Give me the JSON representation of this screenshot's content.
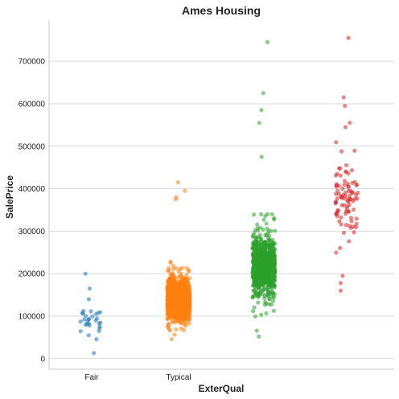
{
  "chart_data": {
    "type": "scatter",
    "subtype": "strip",
    "title": "Ames Housing",
    "xlabel": "ExterQual",
    "ylabel": "SalePrice",
    "ylim": [
      -25000,
      795000
    ],
    "yticks": [
      0,
      100000,
      200000,
      300000,
      400000,
      500000,
      600000,
      700000
    ],
    "grid": "horizontal",
    "categories": [
      "Fair",
      "Typical",
      "",
      ""
    ],
    "series": [
      {
        "category_index": 0,
        "color": "#1f77b4",
        "count": 28,
        "median": 85000,
        "q1": 62000,
        "q3": 110000,
        "min": 13000,
        "max": 200000
      },
      {
        "category_index": 1,
        "color": "#ff7f0e",
        "count": 1800,
        "median": 140000,
        "q1": 115000,
        "q3": 170000,
        "min": 13000,
        "max": 415000
      },
      {
        "category_index": 2,
        "color": "#2ca02c",
        "count": 900,
        "median": 220000,
        "q1": 180000,
        "q3": 270000,
        "min": 52000,
        "max": 745000
      },
      {
        "category_index": 3,
        "color": "#d62728",
        "count": 90,
        "median": 370000,
        "q1": 315000,
        "q3": 430000,
        "min": 160000,
        "max": 755000
      }
    ],
    "notable_points": [
      {
        "category_index": 0,
        "values": [
          200000,
          165000,
          140000,
          13000
        ]
      },
      {
        "category_index": 1,
        "values": [
          415000,
          395000,
          380000,
          375000
        ]
      },
      {
        "category_index": 2,
        "values": [
          745000,
          625000,
          585000,
          555000,
          475000,
          52000
        ]
      },
      {
        "category_index": 3,
        "values": [
          755000,
          615000,
          595000,
          555000,
          545000,
          160000,
          178000
        ]
      }
    ]
  }
}
